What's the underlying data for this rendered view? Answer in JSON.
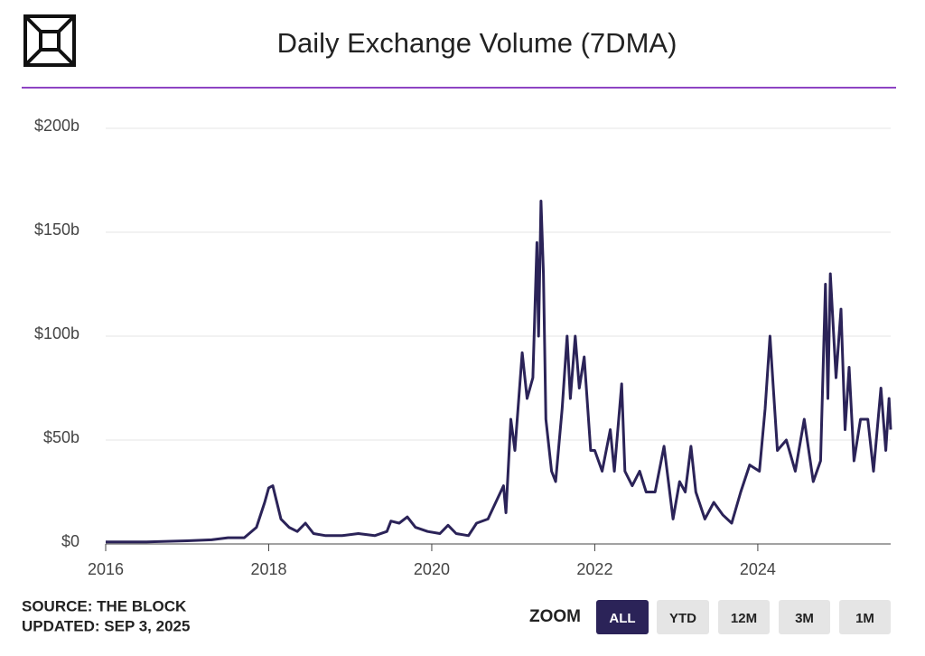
{
  "chart_data": {
    "type": "line",
    "title": "Daily Exchange Volume (7DMA)",
    "x": [
      2016.0,
      2016.5,
      2017.0,
      2017.3,
      2017.5,
      2017.7,
      2017.85,
      2017.95,
      2018.0,
      2018.05,
      2018.1,
      2018.15,
      2018.25,
      2018.35,
      2018.45,
      2018.55,
      2018.7,
      2018.9,
      2019.1,
      2019.3,
      2019.45,
      2019.5,
      2019.6,
      2019.7,
      2019.8,
      2019.95,
      2020.1,
      2020.2,
      2020.3,
      2020.45,
      2020.55,
      2020.69,
      2020.88,
      2020.91,
      2020.97,
      2021.02,
      2021.11,
      2021.17,
      2021.24,
      2021.29,
      2021.31,
      2021.34,
      2021.37,
      2021.4,
      2021.47,
      2021.52,
      2021.6,
      2021.66,
      2021.7,
      2021.76,
      2021.81,
      2021.87,
      2021.95,
      2022.0,
      2022.09,
      2022.19,
      2022.24,
      2022.33,
      2022.37,
      2022.46,
      2022.55,
      2022.63,
      2022.74,
      2022.85,
      2022.96,
      2023.04,
      2023.11,
      2023.18,
      2023.24,
      2023.35,
      2023.46,
      2023.57,
      2023.68,
      2023.79,
      2023.9,
      2024.02,
      2024.09,
      2024.15,
      2024.19,
      2024.24,
      2024.35,
      2024.46,
      2024.57,
      2024.68,
      2024.77,
      2024.83,
      2024.86,
      2024.89,
      2024.96,
      2025.02,
      2025.07,
      2025.12,
      2025.18,
      2025.26,
      2025.35,
      2025.42,
      2025.51,
      2025.57,
      2025.61,
      2025.63
    ],
    "series": [
      {
        "name": "Daily Exchange Volume (7DMA)",
        "color": "#2b2358",
        "values": [
          1,
          1,
          1.5,
          2,
          3,
          3,
          8,
          20,
          27,
          28,
          20,
          12,
          8,
          6,
          10,
          5,
          4,
          4,
          5,
          4,
          6,
          11,
          10,
          13,
          8,
          6,
          5,
          9,
          5,
          4,
          10,
          12,
          28,
          15,
          60,
          45,
          92,
          70,
          80,
          145,
          100,
          165,
          130,
          60,
          35,
          30,
          65,
          100,
          70,
          100,
          75,
          90,
          45,
          45,
          35,
          55,
          35,
          77,
          35,
          28,
          35,
          25,
          25,
          47,
          12,
          30,
          25,
          47,
          25,
          12,
          20,
          14,
          10,
          25,
          38,
          35,
          65,
          100,
          75,
          45,
          50,
          35,
          60,
          30,
          40,
          125,
          70,
          130,
          80,
          113,
          55,
          85,
          40,
          60,
          60,
          35,
          75,
          45,
          70,
          55
        ]
      }
    ],
    "xlim": [
      2016.0,
      2025.63
    ],
    "xticks": [
      2016,
      2018,
      2020,
      2022,
      2024
    ],
    "ylim": [
      0,
      200
    ],
    "yticks": [
      {
        "value": 0,
        "label": "$0"
      },
      {
        "value": 50,
        "label": "$50b"
      },
      {
        "value": 100,
        "label": "$100b"
      },
      {
        "value": 150,
        "label": "$150b"
      },
      {
        "value": 200,
        "label": "$200b"
      }
    ],
    "grid": true
  },
  "footer": {
    "source": "SOURCE: THE BLOCK",
    "updated": "UPDATED: SEP 3, 2025"
  },
  "zoom": {
    "label": "ZOOM",
    "buttons": [
      "ALL",
      "YTD",
      "12M",
      "3M",
      "1M"
    ],
    "active": 0
  }
}
